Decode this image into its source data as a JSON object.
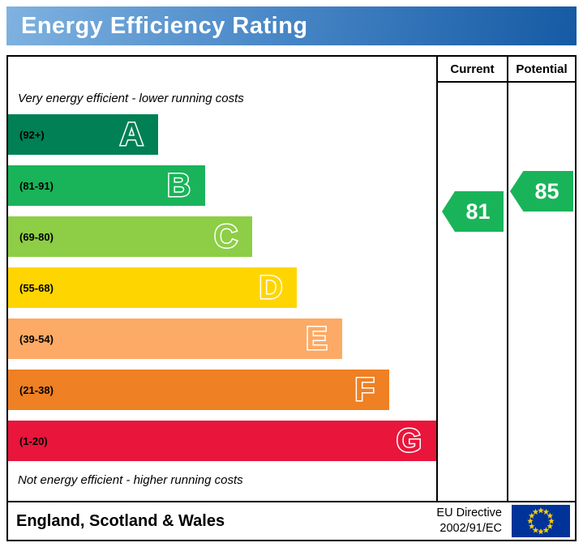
{
  "title": "Energy Efficiency Rating",
  "columns": {
    "current": "Current",
    "potential": "Potential"
  },
  "top_caption": "Very energy efficient - lower running costs",
  "bottom_caption": "Not energy efficient - higher running costs",
  "bands": [
    {
      "letter": "A",
      "range": "(92+)",
      "color": "#008054",
      "width_pct": 35
    },
    {
      "letter": "B",
      "range": "(81-91)",
      "color": "#19b459",
      "width_pct": 46
    },
    {
      "letter": "C",
      "range": "(69-80)",
      "color": "#8dce46",
      "width_pct": 57
    },
    {
      "letter": "D",
      "range": "(55-68)",
      "color": "#ffd500",
      "width_pct": 67.5
    },
    {
      "letter": "E",
      "range": "(39-54)",
      "color": "#fcaa65",
      "width_pct": 78
    },
    {
      "letter": "F",
      "range": "(21-38)",
      "color": "#ef8023",
      "width_pct": 89
    },
    {
      "letter": "G",
      "range": "(1-20)",
      "color": "#e9153b",
      "width_pct": 100
    }
  ],
  "ratings": {
    "current": {
      "value": "81",
      "color": "#19b459"
    },
    "potential": {
      "value": "85",
      "color": "#19b459"
    }
  },
  "footer": {
    "region": "England, Scotland & Wales",
    "directive_line1": "EU Directive",
    "directive_line2": "2002/91/EC"
  },
  "colors": {
    "banner_blue": "#2f6ec0",
    "flag_blue": "#003399",
    "flag_star_yellow": "#ffcc00"
  },
  "chart_data": {
    "type": "bar",
    "title": "Energy Efficiency Rating",
    "categories": [
      "A",
      "B",
      "C",
      "D",
      "E",
      "F",
      "G"
    ],
    "band_ranges": [
      "92+",
      "81-91",
      "69-80",
      "55-68",
      "39-54",
      "21-38",
      "1-20"
    ],
    "band_colors": [
      "#008054",
      "#19b459",
      "#8dce46",
      "#ffd500",
      "#fcaa65",
      "#ef8023",
      "#e9153b"
    ],
    "bar_lengths_pct": [
      35,
      46,
      57,
      67.5,
      78,
      89,
      100
    ],
    "current_rating": 81,
    "potential_rating": 85,
    "annotation_top": "Very energy efficient - lower running costs",
    "annotation_bottom": "Not energy efficient - higher running costs",
    "region": "England, Scotland & Wales",
    "directive": "EU Directive 2002/91/EC",
    "legend_position": "none",
    "grid": false
  }
}
